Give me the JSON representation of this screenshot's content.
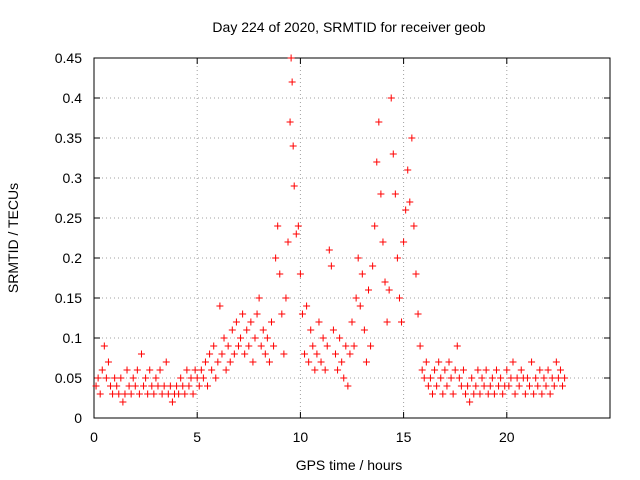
{
  "chart_data": {
    "type": "scatter",
    "title": "Day 224 of 2020, SRMTID for receiver geob",
    "xlabel": "GPS time / hours",
    "ylabel": "SRMTID / TECUs",
    "xlim": [
      0,
      25
    ],
    "ylim": [
      0,
      0.45
    ],
    "xticks": [
      0,
      5,
      10,
      15,
      20
    ],
    "xtick_labels": [
      "0",
      "5",
      "10",
      "15",
      "20"
    ],
    "yticks": [
      0,
      0.05,
      0.1,
      0.15,
      0.2,
      0.25,
      0.3,
      0.35,
      0.4,
      0.45
    ],
    "ytick_labels": [
      "0",
      "0.05",
      "0.1",
      "0.15",
      "0.2",
      "0.25",
      "0.3",
      "0.35",
      "0.4",
      "0.45"
    ],
    "grid": true,
    "marker": "+",
    "series": [
      {
        "name": "SRMTID",
        "color": "#ff0000",
        "points": [
          [
            0.1,
            0.04
          ],
          [
            0.2,
            0.05
          ],
          [
            0.3,
            0.03
          ],
          [
            0.4,
            0.06
          ],
          [
            0.5,
            0.09
          ],
          [
            0.6,
            0.05
          ],
          [
            0.7,
            0.07
          ],
          [
            0.8,
            0.04
          ],
          [
            0.9,
            0.03
          ],
          [
            1.0,
            0.05
          ],
          [
            1.1,
            0.04
          ],
          [
            1.2,
            0.03
          ],
          [
            1.3,
            0.05
          ],
          [
            1.4,
            0.02
          ],
          [
            1.5,
            0.03
          ],
          [
            1.6,
            0.06
          ],
          [
            1.7,
            0.04
          ],
          [
            1.8,
            0.03
          ],
          [
            1.9,
            0.05
          ],
          [
            2.0,
            0.04
          ],
          [
            2.1,
            0.06
          ],
          [
            2.2,
            0.03
          ],
          [
            2.3,
            0.08
          ],
          [
            2.4,
            0.04
          ],
          [
            2.5,
            0.05
          ],
          [
            2.6,
            0.03
          ],
          [
            2.7,
            0.06
          ],
          [
            2.8,
            0.04
          ],
          [
            2.9,
            0.03
          ],
          [
            3.0,
            0.05
          ],
          [
            3.1,
            0.04
          ],
          [
            3.2,
            0.06
          ],
          [
            3.3,
            0.03
          ],
          [
            3.4,
            0.04
          ],
          [
            3.5,
            0.07
          ],
          [
            3.6,
            0.03
          ],
          [
            3.7,
            0.04
          ],
          [
            3.8,
            0.02
          ],
          [
            3.9,
            0.03
          ],
          [
            4.0,
            0.04
          ],
          [
            4.1,
            0.03
          ],
          [
            4.2,
            0.05
          ],
          [
            4.3,
            0.04
          ],
          [
            4.4,
            0.03
          ],
          [
            4.5,
            0.06
          ],
          [
            4.6,
            0.04
          ],
          [
            4.7,
            0.05
          ],
          [
            4.8,
            0.03
          ],
          [
            4.9,
            0.06
          ],
          [
            5.0,
            0.05
          ],
          [
            5.1,
            0.04
          ],
          [
            5.2,
            0.06
          ],
          [
            5.3,
            0.05
          ],
          [
            5.4,
            0.07
          ],
          [
            5.5,
            0.04
          ],
          [
            5.6,
            0.08
          ],
          [
            5.7,
            0.06
          ],
          [
            5.8,
            0.09
          ],
          [
            5.9,
            0.05
          ],
          [
            6.0,
            0.07
          ],
          [
            6.1,
            0.14
          ],
          [
            6.2,
            0.08
          ],
          [
            6.3,
            0.1
          ],
          [
            6.4,
            0.06
          ],
          [
            6.5,
            0.09
          ],
          [
            6.6,
            0.07
          ],
          [
            6.7,
            0.11
          ],
          [
            6.8,
            0.08
          ],
          [
            6.9,
            0.12
          ],
          [
            7.0,
            0.09
          ],
          [
            7.1,
            0.1
          ],
          [
            7.2,
            0.13
          ],
          [
            7.3,
            0.08
          ],
          [
            7.4,
            0.11
          ],
          [
            7.5,
            0.09
          ],
          [
            7.6,
            0.12
          ],
          [
            7.7,
            0.07
          ],
          [
            7.8,
            0.1
          ],
          [
            7.9,
            0.13
          ],
          [
            8.0,
            0.15
          ],
          [
            8.1,
            0.09
          ],
          [
            8.2,
            0.11
          ],
          [
            8.3,
            0.08
          ],
          [
            8.4,
            0.1
          ],
          [
            8.5,
            0.07
          ],
          [
            8.6,
            0.12
          ],
          [
            8.7,
            0.09
          ],
          [
            8.8,
            0.2
          ],
          [
            8.9,
            0.24
          ],
          [
            9.0,
            0.18
          ],
          [
            9.1,
            0.13
          ],
          [
            9.2,
            0.08
          ],
          [
            9.3,
            0.15
          ],
          [
            9.4,
            0.22
          ],
          [
            9.5,
            0.37
          ],
          [
            9.55,
            0.45
          ],
          [
            9.6,
            0.42
          ],
          [
            9.65,
            0.34
          ],
          [
            9.7,
            0.29
          ],
          [
            9.8,
            0.23
          ],
          [
            9.9,
            0.24
          ],
          [
            10.0,
            0.18
          ],
          [
            10.1,
            0.13
          ],
          [
            10.2,
            0.08
          ],
          [
            10.3,
            0.14
          ],
          [
            10.4,
            0.07
          ],
          [
            10.5,
            0.11
          ],
          [
            10.6,
            0.09
          ],
          [
            10.7,
            0.06
          ],
          [
            10.8,
            0.08
          ],
          [
            10.9,
            0.12
          ],
          [
            11.0,
            0.07
          ],
          [
            11.1,
            0.1
          ],
          [
            11.2,
            0.06
          ],
          [
            11.3,
            0.09
          ],
          [
            11.4,
            0.21
          ],
          [
            11.5,
            0.19
          ],
          [
            11.6,
            0.11
          ],
          [
            11.7,
            0.08
          ],
          [
            11.8,
            0.06
          ],
          [
            11.9,
            0.1
          ],
          [
            12.0,
            0.07
          ],
          [
            12.1,
            0.05
          ],
          [
            12.2,
            0.09
          ],
          [
            12.3,
            0.04
          ],
          [
            12.4,
            0.08
          ],
          [
            12.5,
            0.12
          ],
          [
            12.6,
            0.09
          ],
          [
            12.7,
            0.15
          ],
          [
            12.8,
            0.2
          ],
          [
            12.9,
            0.14
          ],
          [
            13.0,
            0.18
          ],
          [
            13.1,
            0.11
          ],
          [
            13.2,
            0.07
          ],
          [
            13.3,
            0.16
          ],
          [
            13.4,
            0.09
          ],
          [
            13.5,
            0.19
          ],
          [
            13.6,
            0.24
          ],
          [
            13.7,
            0.32
          ],
          [
            13.8,
            0.37
          ],
          [
            13.9,
            0.28
          ],
          [
            14.0,
            0.22
          ],
          [
            14.1,
            0.17
          ],
          [
            14.2,
            0.12
          ],
          [
            14.3,
            0.16
          ],
          [
            14.4,
            0.4
          ],
          [
            14.5,
            0.33
          ],
          [
            14.6,
            0.28
          ],
          [
            14.7,
            0.2
          ],
          [
            14.8,
            0.15
          ],
          [
            14.9,
            0.12
          ],
          [
            15.0,
            0.22
          ],
          [
            15.1,
            0.26
          ],
          [
            15.2,
            0.31
          ],
          [
            15.3,
            0.27
          ],
          [
            15.4,
            0.35
          ],
          [
            15.5,
            0.24
          ],
          [
            15.6,
            0.18
          ],
          [
            15.7,
            0.13
          ],
          [
            15.8,
            0.09
          ],
          [
            15.9,
            0.06
          ],
          [
            16.0,
            0.05
          ],
          [
            16.1,
            0.07
          ],
          [
            16.2,
            0.04
          ],
          [
            16.3,
            0.05
          ],
          [
            16.4,
            0.03
          ],
          [
            16.5,
            0.06
          ],
          [
            16.6,
            0.04
          ],
          [
            16.7,
            0.07
          ],
          [
            16.8,
            0.05
          ],
          [
            16.9,
            0.03
          ],
          [
            17.0,
            0.06
          ],
          [
            17.1,
            0.04
          ],
          [
            17.2,
            0.07
          ],
          [
            17.3,
            0.05
          ],
          [
            17.4,
            0.03
          ],
          [
            17.5,
            0.06
          ],
          [
            17.6,
            0.09
          ],
          [
            17.7,
            0.05
          ],
          [
            17.8,
            0.04
          ],
          [
            17.9,
            0.06
          ],
          [
            18.0,
            0.03
          ],
          [
            18.1,
            0.04
          ],
          [
            18.2,
            0.02
          ],
          [
            18.3,
            0.05
          ],
          [
            18.4,
            0.03
          ],
          [
            18.5,
            0.04
          ],
          [
            18.6,
            0.06
          ],
          [
            18.7,
            0.03
          ],
          [
            18.8,
            0.05
          ],
          [
            18.9,
            0.04
          ],
          [
            19.0,
            0.06
          ],
          [
            19.1,
            0.03
          ],
          [
            19.2,
            0.04
          ],
          [
            19.3,
            0.05
          ],
          [
            19.4,
            0.03
          ],
          [
            19.5,
            0.06
          ],
          [
            19.6,
            0.04
          ],
          [
            19.7,
            0.05
          ],
          [
            19.8,
            0.03
          ],
          [
            19.9,
            0.04
          ],
          [
            20.0,
            0.06
          ],
          [
            20.1,
            0.04
          ],
          [
            20.2,
            0.05
          ],
          [
            20.3,
            0.07
          ],
          [
            20.4,
            0.03
          ],
          [
            20.5,
            0.05
          ],
          [
            20.6,
            0.04
          ],
          [
            20.7,
            0.06
          ],
          [
            20.8,
            0.05
          ],
          [
            20.9,
            0.03
          ],
          [
            21.0,
            0.05
          ],
          [
            21.1,
            0.04
          ],
          [
            21.2,
            0.07
          ],
          [
            21.3,
            0.03
          ],
          [
            21.4,
            0.05
          ],
          [
            21.5,
            0.04
          ],
          [
            21.6,
            0.06
          ],
          [
            21.7,
            0.03
          ],
          [
            21.8,
            0.05
          ],
          [
            21.9,
            0.04
          ],
          [
            22.0,
            0.06
          ],
          [
            22.1,
            0.03
          ],
          [
            22.2,
            0.05
          ],
          [
            22.3,
            0.04
          ],
          [
            22.4,
            0.07
          ],
          [
            22.5,
            0.05
          ],
          [
            22.6,
            0.06
          ],
          [
            22.7,
            0.04
          ],
          [
            22.8,
            0.05
          ]
        ]
      }
    ]
  }
}
